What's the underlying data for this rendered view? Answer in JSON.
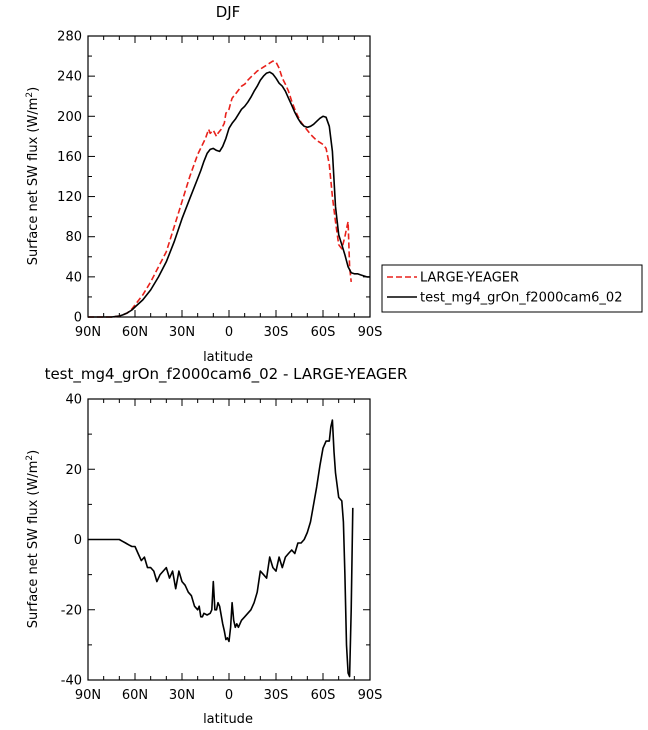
{
  "chart_data": [
    {
      "type": "line",
      "title": "DJF",
      "xlabel": "latitude",
      "ylabel": "Surface net SW flux (W/m",
      "ylabel_sup": "2",
      "ylabel_close": ")",
      "xlim": [
        90,
        -90
      ],
      "ylim": [
        0,
        280
      ],
      "xticks": [
        {
          "value": 90,
          "label": "90N"
        },
        {
          "value": 60,
          "label": "60N"
        },
        {
          "value": 30,
          "label": "30N"
        },
        {
          "value": 0,
          "label": "0"
        },
        {
          "value": -30,
          "label": "30S"
        },
        {
          "value": -60,
          "label": "60S"
        },
        {
          "value": -90,
          "label": "90S"
        }
      ],
      "yticks": [
        0,
        40,
        80,
        120,
        160,
        200,
        240,
        280
      ],
      "legend_position": "right",
      "series": [
        {
          "name": "LARGE-YEAGER",
          "color": "#e8211b",
          "dash": "dashed",
          "x": [
            90,
            80,
            75,
            70,
            68,
            65,
            62,
            60,
            55,
            50,
            45,
            40,
            35,
            30,
            25,
            20,
            15,
            13,
            12,
            10,
            8,
            7,
            5,
            3,
            2,
            0,
            -1,
            -2,
            -4,
            -6,
            -8,
            -10,
            -12,
            -14,
            -16,
            -18,
            -20,
            -22,
            -24,
            -26,
            -28,
            -30,
            -32,
            -34,
            -36,
            -38,
            -40,
            -42,
            -44,
            -46,
            -48,
            -50,
            -52,
            -54,
            -56,
            -58,
            -60,
            -62,
            -64,
            -66,
            -68,
            -70,
            -72,
            -74,
            -75,
            -76,
            -77,
            -78
          ],
          "y": [
            0,
            0,
            0,
            1,
            2,
            4,
            8,
            12,
            22,
            35,
            50,
            65,
            90,
            115,
            140,
            162,
            178,
            187,
            183,
            186,
            180,
            183,
            187,
            193,
            203,
            207,
            213,
            218,
            222,
            226,
            230,
            232,
            236,
            239,
            242,
            245,
            247,
            249,
            251,
            253,
            255,
            254,
            248,
            238,
            232,
            225,
            215,
            207,
            200,
            194,
            190,
            186,
            182,
            179,
            176,
            174,
            172,
            168,
            152,
            120,
            95,
            72,
            68,
            80,
            88,
            95,
            50,
            35
          ]
        },
        {
          "name": "test_mg4_grOn_f2000cam6_02",
          "color": "#000000",
          "dash": "solid",
          "x": [
            90,
            80,
            75,
            70,
            68,
            65,
            62,
            60,
            55,
            50,
            45,
            40,
            35,
            30,
            25,
            20,
            18,
            16,
            14,
            12,
            10,
            8,
            6,
            4,
            2,
            0,
            -2,
            -4,
            -6,
            -8,
            -10,
            -12,
            -14,
            -16,
            -18,
            -20,
            -22,
            -24,
            -26,
            -28,
            -30,
            -32,
            -34,
            -36,
            -38,
            -40,
            -42,
            -44,
            -46,
            -48,
            -50,
            -52,
            -54,
            -56,
            -58,
            -60,
            -62,
            -64,
            -66,
            -68,
            -70,
            -72,
            -74,
            -76,
            -78,
            -80,
            -82,
            -84,
            -86,
            -88,
            -90
          ],
          "y": [
            0,
            0,
            0,
            1,
            2,
            4,
            7,
            10,
            17,
            27,
            40,
            55,
            75,
            98,
            118,
            138,
            146,
            155,
            163,
            167,
            168,
            166,
            165,
            170,
            178,
            188,
            193,
            197,
            202,
            207,
            210,
            214,
            219,
            225,
            230,
            236,
            240,
            243,
            244,
            242,
            238,
            233,
            230,
            225,
            218,
            211,
            204,
            198,
            193,
            190,
            189,
            190,
            192,
            195,
            198,
            200,
            199,
            190,
            165,
            110,
            82,
            72,
            62,
            50,
            44,
            43,
            43,
            42,
            41,
            40,
            40
          ]
        }
      ]
    },
    {
      "type": "line",
      "title": "test_mg4_grOn_f2000cam6_02 - LARGE-YEAGER",
      "xlabel": "latitude",
      "ylabel": "Surface net SW flux (W/m",
      "ylabel_sup": "2",
      "ylabel_close": ")",
      "xlim": [
        90,
        -90
      ],
      "ylim": [
        -40,
        40
      ],
      "xticks": [
        {
          "value": 90,
          "label": "90N"
        },
        {
          "value": 60,
          "label": "60N"
        },
        {
          "value": 30,
          "label": "30N"
        },
        {
          "value": 0,
          "label": "0"
        },
        {
          "value": -30,
          "label": "30S"
        },
        {
          "value": -60,
          "label": "60S"
        },
        {
          "value": -90,
          "label": "90S"
        }
      ],
      "yticks": [
        -40,
        -20,
        0,
        20,
        40
      ],
      "series": [
        {
          "color": "#000000",
          "dash": "solid",
          "x": [
            90,
            80,
            75,
            72,
            70,
            68,
            66,
            64,
            62,
            60,
            58,
            56,
            54,
            52,
            50,
            48,
            46,
            44,
            42,
            40,
            38,
            36,
            34,
            32,
            30,
            28,
            26,
            24,
            22,
            20,
            19,
            18,
            17,
            16,
            14,
            12,
            11,
            10,
            9,
            8,
            7,
            6,
            4,
            3,
            2,
            1,
            0,
            -1,
            -2,
            -3,
            -4,
            -5,
            -6,
            -8,
            -10,
            -12,
            -14,
            -16,
            -18,
            -20,
            -22,
            -24,
            -26,
            -28,
            -30,
            -32,
            -34,
            -36,
            -38,
            -40,
            -42,
            -44,
            -46,
            -48,
            -50,
            -52,
            -54,
            -56,
            -58,
            -60,
            -62,
            -64,
            -65,
            -66,
            -67,
            -68,
            -70,
            -71,
            -72,
            -73,
            -74,
            -75,
            -76,
            -77,
            -78,
            -79
          ],
          "y": [
            0,
            0,
            0,
            0,
            0,
            -0.5,
            -1,
            -1.5,
            -2,
            -2,
            -4,
            -6,
            -5,
            -8,
            -8,
            -9,
            -12,
            -10,
            -9,
            -8,
            -11,
            -9,
            -14,
            -9,
            -12,
            -13,
            -15,
            -16,
            -19,
            -20,
            -19,
            -22,
            -22,
            -21,
            -21.5,
            -21,
            -20,
            -12,
            -20,
            -20,
            -18,
            -19,
            -24,
            -26,
            -28.5,
            -28,
            -29,
            -25,
            -18,
            -23,
            -25,
            -24,
            -25,
            -23,
            -22,
            -21,
            -20,
            -18,
            -15,
            -9,
            -10,
            -11,
            -5,
            -8,
            -9,
            -5,
            -8,
            -5,
            -4,
            -3,
            -4,
            -1,
            -1,
            0,
            2,
            5,
            10,
            15,
            21,
            26,
            28,
            28,
            32,
            34,
            25,
            19,
            12,
            11.5,
            11,
            5,
            -10,
            -30,
            -38,
            -39,
            -20,
            9
          ]
        }
      ]
    }
  ]
}
